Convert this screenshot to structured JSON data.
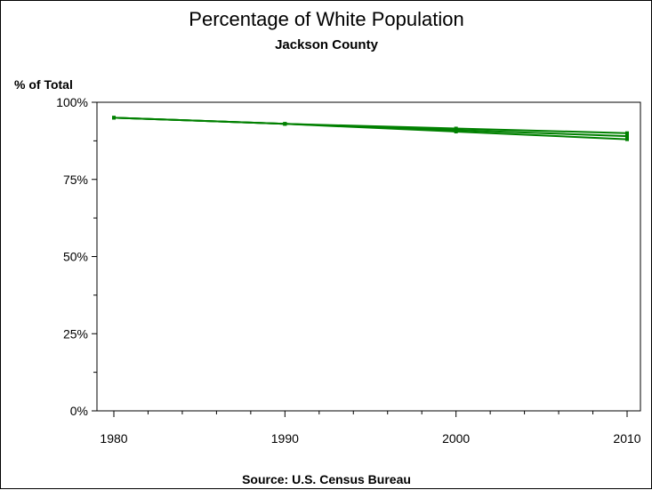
{
  "chart_data": {
    "type": "line",
    "title": "Percentage of White Population",
    "subtitle": "Jackson County",
    "ylabel": "% of Total",
    "xlabel": "",
    "source": "Source: U.S. Census Bureau",
    "x_ticks": [
      "1980",
      "1990",
      "2000",
      "2010"
    ],
    "y_ticks": [
      "0%",
      "25%",
      "50%",
      "75%",
      "100%"
    ],
    "xlim": [
      1980,
      2010
    ],
    "ylim": [
      0,
      100
    ],
    "grid": false,
    "legend": "none",
    "series": [
      {
        "color": "#008000",
        "x": [
          1980,
          1990,
          2000,
          2010
        ],
        "y": [
          95,
          93,
          91,
          89
        ]
      },
      {
        "color": "#008000",
        "x": [
          1980,
          1990,
          2000,
          2010
        ],
        "y": [
          95,
          93,
          91.5,
          90
        ]
      },
      {
        "color": "#008000",
        "x": [
          1980,
          1990,
          2000,
          2010
        ],
        "y": [
          95,
          93,
          90.5,
          88
        ]
      }
    ]
  }
}
